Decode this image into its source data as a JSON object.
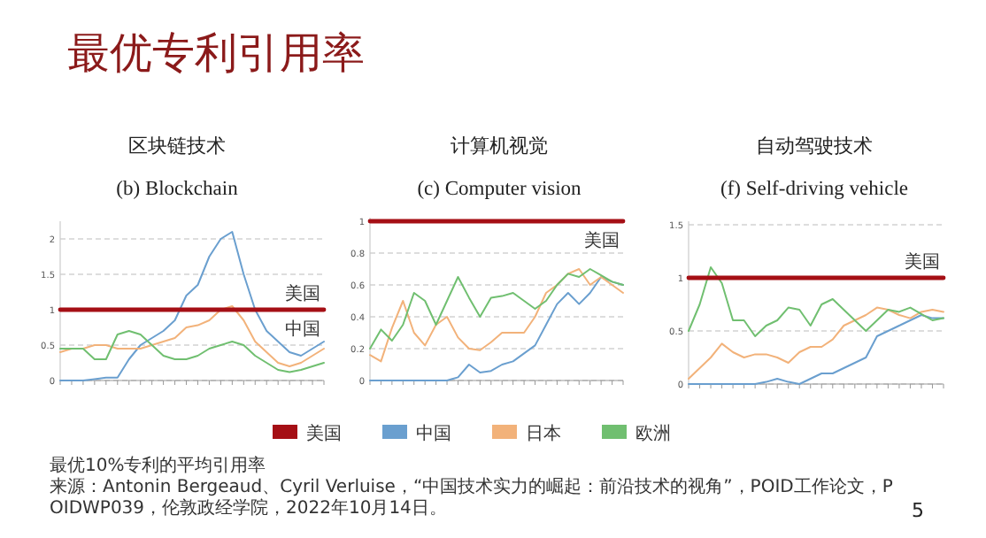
{
  "chart_data": [
    {
      "type": "line",
      "title": "区块链技术",
      "subtitle": "(b) Blockchain",
      "categories": [
        null,
        null,
        null,
        null,
        null,
        null,
        null,
        null,
        null,
        null,
        null,
        null,
        null,
        null,
        null,
        null,
        null,
        null,
        null,
        null,
        null,
        null,
        null,
        null
      ],
      "ylim": [
        0,
        2.2
      ],
      "yticks": [
        0,
        0.5,
        1,
        1.5,
        2
      ],
      "grid": "y",
      "legend": "bottom",
      "marker": "none",
      "line_style": "solid",
      "series": [
        {
          "name": "美国",
          "color": "#a50f15",
          "values": [
            1,
            1,
            1,
            1,
            1,
            1,
            1,
            1,
            1,
            1,
            1,
            1,
            1,
            1,
            1,
            1,
            1,
            1,
            1,
            1,
            1,
            1,
            1,
            1
          ]
        },
        {
          "name": "中国",
          "color": "#6a9fcf",
          "values": [
            0,
            0,
            0,
            0.02,
            0.04,
            0.04,
            0.3,
            0.5,
            0.6,
            0.7,
            0.85,
            1.2,
            1.35,
            1.75,
            2.0,
            2.1,
            1.5,
            1.0,
            0.7,
            0.55,
            0.4,
            0.35,
            0.45,
            0.55
          ]
        },
        {
          "name": "日本",
          "color": "#f2b27a",
          "values": [
            0.4,
            0.45,
            0.45,
            0.5,
            0.5,
            0.45,
            0.45,
            0.45,
            0.5,
            0.55,
            0.6,
            0.75,
            0.78,
            0.85,
            1.0,
            1.05,
            0.85,
            0.55,
            0.4,
            0.25,
            0.2,
            0.25,
            0.35,
            0.45
          ]
        },
        {
          "name": "欧洲",
          "color": "#70bf70",
          "values": [
            0.45,
            0.45,
            0.45,
            0.3,
            0.3,
            0.65,
            0.7,
            0.65,
            0.5,
            0.35,
            0.3,
            0.3,
            0.35,
            0.45,
            0.5,
            0.55,
            0.5,
            0.35,
            0.25,
            0.15,
            0.12,
            0.15,
            0.2,
            0.25
          ]
        }
      ],
      "annotations": [
        "最优专利引用率",
        "美国",
        "中国",
        "最优10%专利的平均引用率",
        "来源：Antonin Bergeaud、Cyril Verluise，“中国技术实力的崛起：前沿技术的视角”，POID工作论文，POIDWP039，伦敦政经学院，2022年10月14日。",
        "5"
      ]
    },
    {
      "type": "line",
      "title": "计算机视觉",
      "subtitle": "(c) Computer vision",
      "categories": [
        null,
        null,
        null,
        null,
        null,
        null,
        null,
        null,
        null,
        null,
        null,
        null,
        null,
        null,
        null,
        null,
        null,
        null,
        null,
        null,
        null,
        null,
        null,
        null
      ],
      "ylim": [
        0,
        1
      ],
      "yticks": [
        0,
        0.2,
        0.4,
        0.6,
        0.8,
        1
      ],
      "grid": "y",
      "marker": "none",
      "line_style": "solid",
      "series": [
        {
          "color": "#a50f15",
          "values": [
            1,
            1,
            1,
            1,
            1,
            1,
            1,
            1,
            1,
            1,
            1,
            1,
            1,
            1,
            1,
            1,
            1,
            1,
            1,
            1,
            1,
            1,
            1,
            1
          ]
        },
        {
          "color": "#6a9fcf",
          "values": [
            0,
            0,
            0,
            0,
            0,
            0,
            0,
            0,
            0.02,
            0.1,
            0.05,
            0.06,
            0.1,
            0.12,
            0.17,
            0.22,
            0.35,
            0.48,
            0.55,
            0.48,
            0.55,
            0.65,
            0.62,
            0.6
          ]
        },
        {
          "color": "#f2b27a",
          "values": [
            0.16,
            0.12,
            0.33,
            0.5,
            0.3,
            0.22,
            0.35,
            0.4,
            0.27,
            0.2,
            0.19,
            0.24,
            0.3,
            0.3,
            0.3,
            0.4,
            0.55,
            0.6,
            0.67,
            0.7,
            0.6,
            0.65,
            0.6,
            0.55
          ]
        },
        {
          "color": "#70bf70",
          "values": [
            0.2,
            0.32,
            0.25,
            0.35,
            0.55,
            0.5,
            0.35,
            0.5,
            0.65,
            0.52,
            0.4,
            0.52,
            0.53,
            0.55,
            0.5,
            0.45,
            0.5,
            0.6,
            0.67,
            0.65,
            0.7,
            0.66,
            0.62,
            0.6
          ]
        }
      ],
      "annotations": [
        "美国"
      ]
    },
    {
      "type": "line",
      "title": "自动驾驶技术",
      "subtitle": "(f) Self-driving vehicle",
      "categories": [
        null,
        null,
        null,
        null,
        null,
        null,
        null,
        null,
        null,
        null,
        null,
        null,
        null,
        null,
        null,
        null,
        null,
        null,
        null,
        null,
        null,
        null,
        null,
        null
      ],
      "ylim": [
        0,
        1.5
      ],
      "yticks": [
        0,
        0.5,
        1,
        1.5
      ],
      "grid": "y",
      "marker": "none",
      "line_style": "solid",
      "series": [
        {
          "color": "#a50f15",
          "values": [
            1,
            1,
            1,
            1,
            1,
            1,
            1,
            1,
            1,
            1,
            1,
            1,
            1,
            1,
            1,
            1,
            1,
            1,
            1,
            1,
            1,
            1,
            1,
            1
          ]
        },
        {
          "color": "#6a9fcf",
          "values": [
            0,
            0,
            0,
            0,
            0,
            0,
            0,
            0.02,
            0.05,
            0.02,
            0,
            0.05,
            0.1,
            0.1,
            0.15,
            0.2,
            0.25,
            0.45,
            0.5,
            0.55,
            0.6,
            0.65,
            0.62,
            0.62
          ]
        },
        {
          "color": "#f2b27a",
          "values": [
            0.05,
            0.15,
            0.25,
            0.38,
            0.3,
            0.25,
            0.28,
            0.28,
            0.25,
            0.2,
            0.3,
            0.35,
            0.35,
            0.42,
            0.55,
            0.6,
            0.65,
            0.72,
            0.7,
            0.65,
            0.62,
            0.68,
            0.7,
            0.68
          ]
        },
        {
          "color": "#70bf70",
          "values": [
            0.5,
            0.75,
            1.1,
            0.95,
            0.6,
            0.6,
            0.45,
            0.55,
            0.6,
            0.72,
            0.7,
            0.55,
            0.75,
            0.8,
            0.7,
            0.6,
            0.5,
            0.6,
            0.7,
            0.68,
            0.72,
            0.66,
            0.6,
            0.62
          ]
        }
      ],
      "annotations": [
        "美国"
      ]
    }
  ]
}
